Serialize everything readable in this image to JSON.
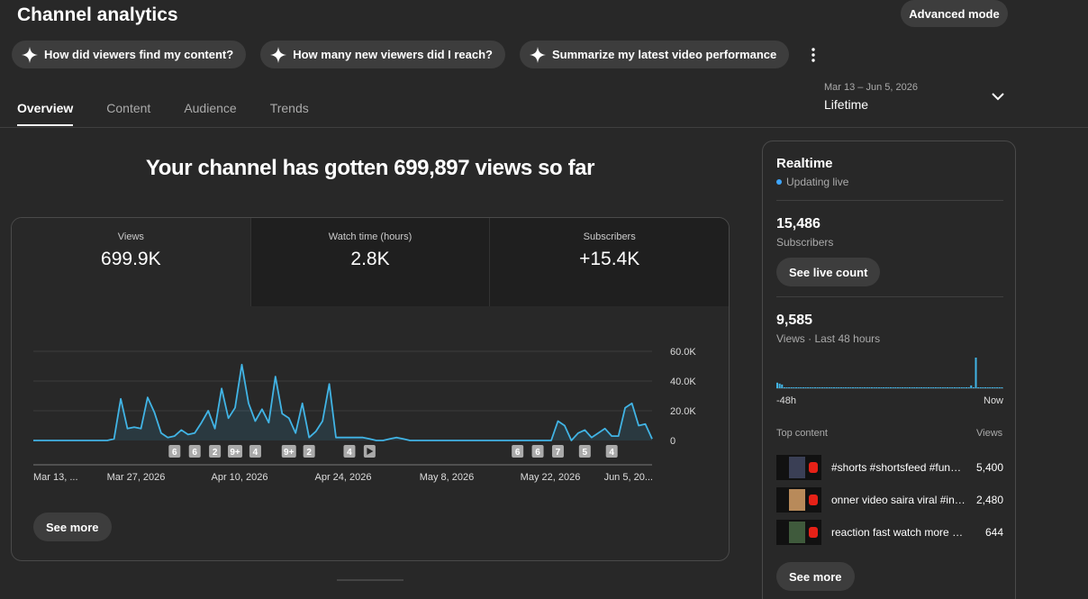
{
  "header": {
    "title": "Channel analytics",
    "advanced_mode": "Advanced mode"
  },
  "chips": [
    {
      "label": "How did viewers find my content?",
      "icon": "sparkle-icon"
    },
    {
      "label": "How many new viewers did I reach?",
      "icon": "sparkle-icon"
    },
    {
      "label": "Summarize my latest video performance",
      "icon": "sparkle-icon"
    }
  ],
  "tabs": [
    {
      "label": "Overview",
      "active": true
    },
    {
      "label": "Content",
      "active": false
    },
    {
      "label": "Audience",
      "active": false
    },
    {
      "label": "Trends",
      "active": false
    }
  ],
  "date_picker": {
    "range": "Mar 13 – Jun 5, 2026",
    "period": "Lifetime"
  },
  "headline": "Your channel has gotten 699,897 views so far",
  "metrics": [
    {
      "label": "Views",
      "value": "699.9K",
      "active": true
    },
    {
      "label": "Watch time (hours)",
      "value": "2.8K",
      "active": false
    },
    {
      "label": "Subscribers",
      "value": "+15.4K",
      "active": false
    }
  ],
  "chart_data": {
    "type": "line",
    "series": [
      {
        "color": "#41b4e5",
        "values": [
          0,
          0,
          0,
          0,
          0,
          0,
          0,
          0,
          0,
          0,
          0,
          0,
          1000,
          28000,
          8000,
          9000,
          8000,
          29000,
          19000,
          5000,
          2000,
          3000,
          7000,
          4000,
          5000,
          12000,
          20000,
          8000,
          35000,
          15000,
          22000,
          51000,
          25000,
          13000,
          21000,
          12000,
          43000,
          18000,
          15000,
          5000,
          25000,
          2000,
          6000,
          13000,
          38000,
          2000,
          2000,
          2000,
          2000,
          2000,
          1000,
          0,
          0,
          1000,
          2000,
          1000,
          0,
          0,
          0,
          0,
          0,
          0,
          0,
          0,
          0,
          0,
          0,
          0,
          0,
          0,
          0,
          0,
          0,
          0,
          0,
          0,
          0,
          0,
          13000,
          10000,
          0,
          5000,
          7000,
          2000,
          5000,
          8000,
          3000,
          3000,
          22000,
          25000,
          10000,
          11000,
          1000
        ]
      }
    ],
    "x_tick_labels": [
      "Mar 13, ...",
      "Mar 27, 2026",
      "Apr 10, 2026",
      "Apr 24, 2026",
      "May 8, 2026",
      "May 22, 2026",
      "Jun 5, 20..."
    ],
    "y_tick_labels": [
      "60.0K",
      "40.0K",
      "20.0K",
      "0"
    ],
    "ylim": [
      0,
      60000
    ],
    "grid": true,
    "markers": [
      {
        "index": 21,
        "label": "6"
      },
      {
        "index": 24,
        "label": "6"
      },
      {
        "index": 27,
        "label": "2"
      },
      {
        "index": 30,
        "label": "9+"
      },
      {
        "index": 33,
        "label": "4"
      },
      {
        "index": 38,
        "label": "9+"
      },
      {
        "index": 41,
        "label": "2"
      },
      {
        "index": 47,
        "label": "4"
      },
      {
        "index": 50,
        "label": "play-icon"
      },
      {
        "index": 72,
        "label": "6"
      },
      {
        "index": 75,
        "label": "6"
      },
      {
        "index": 78,
        "label": "7"
      },
      {
        "index": 82,
        "label": "5"
      },
      {
        "index": 86,
        "label": "4"
      }
    ]
  },
  "see_more": "See more",
  "realtime": {
    "title": "Realtime",
    "status": "Updating live",
    "subscribers": "15,486",
    "subscribers_label": "Subscribers",
    "live_count": "See live count",
    "views": "9,585",
    "views_label": "Views · Last 48 hours",
    "axis_start": "-48h",
    "axis_end": "Now",
    "bars": [
      6,
      5,
      4,
      1,
      1,
      1,
      1,
      1,
      1,
      1,
      1,
      1,
      1,
      1,
      1,
      1,
      1,
      1,
      1,
      1,
      1,
      1,
      1,
      1,
      1,
      1,
      1,
      1,
      1,
      1,
      1,
      1,
      1,
      1,
      1,
      1,
      1,
      1,
      1,
      1,
      1,
      1,
      1,
      0,
      0,
      0,
      1,
      1,
      1,
      1,
      1,
      1,
      1,
      1,
      1,
      1,
      1,
      1,
      1,
      1,
      1,
      1,
      1,
      1,
      1,
      1,
      1,
      1,
      1,
      1,
      1,
      1,
      1,
      1,
      1,
      1,
      1,
      1,
      1,
      1,
      1,
      1,
      3,
      1,
      33,
      1,
      1,
      1,
      1,
      1,
      1,
      1,
      1,
      1,
      1,
      1
    ],
    "top_content_label": "Top content",
    "views_header": "Views",
    "items": [
      {
        "title": "#shorts #shortsfeed #funny video",
        "views": "5,400"
      },
      {
        "title": "onner video saira viral #india",
        "views": "2,480"
      },
      {
        "title": "reaction fast watch more videos",
        "views": "644"
      }
    ],
    "see_more": "See more"
  }
}
